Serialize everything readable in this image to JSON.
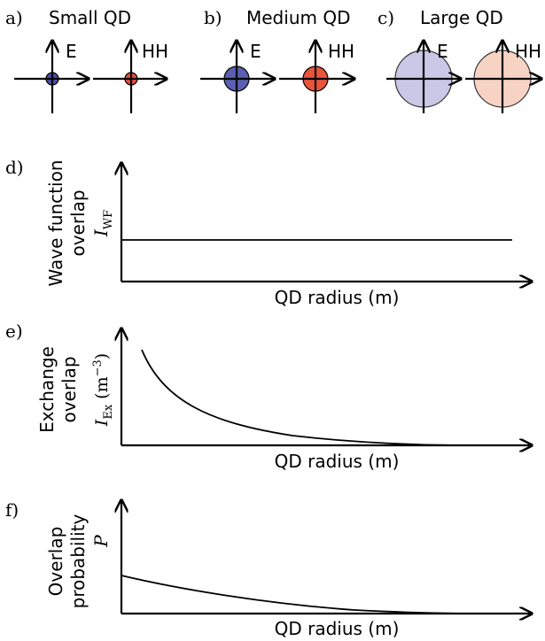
{
  "panels_top": [
    {
      "letter": "a)",
      "title": "Small QD",
      "electron": {
        "label": "E",
        "fill": "#4b4fa3",
        "opacity": 1.0
      },
      "hole": {
        "label": "HH",
        "fill": "#e0503a",
        "opacity": 1.0
      }
    },
    {
      "letter": "b)",
      "title": "Medium QD",
      "electron": {
        "label": "E",
        "fill": "#5a5fb0",
        "opacity": 1.0
      },
      "hole": {
        "label": "HH",
        "fill": "#e8553b",
        "opacity": 1.0
      }
    },
    {
      "letter": "c)",
      "title": "Large QD",
      "electron": {
        "label": "E",
        "fill": "#c9c8e6",
        "opacity": 1.0
      },
      "hole": {
        "label": "HH",
        "fill": "#f7d3c3",
        "opacity": 1.0
      }
    }
  ],
  "graphs": [
    {
      "letter": "d)",
      "ylabel_line1": "Wave function",
      "ylabel_line2": "overlap",
      "symbol": "I",
      "subscript": "WF",
      "unit": "",
      "xlabel": "QD radius (m)",
      "curve": "flat"
    },
    {
      "letter": "e)",
      "ylabel_line1": "Exchange",
      "ylabel_line2": "overlap",
      "symbol": "I",
      "subscript": "Ex",
      "unit": "(m",
      "unit_sup": "−3",
      "unit_close": ")",
      "xlabel": "QD radius (m)",
      "curve": "inverse"
    },
    {
      "letter": "f)",
      "ylabel_line1": "Overlap",
      "ylabel_line2": "probability",
      "symbol": "P",
      "subscript": "",
      "unit": "",
      "xlabel": "QD radius (m)",
      "curve": "decay"
    }
  ]
}
